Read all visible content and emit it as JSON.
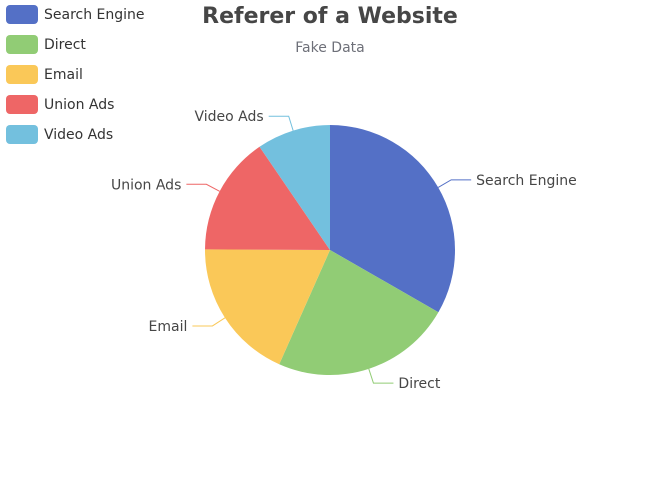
{
  "chart_data": {
    "type": "pie",
    "title": "Referer of a Website",
    "subtitle": "Fake Data",
    "legend_position": "top-left",
    "slices": [
      {
        "name": "Search Engine",
        "value": 1048,
        "color": "#5470c6"
      },
      {
        "name": "Direct",
        "value": 735,
        "color": "#91cc75"
      },
      {
        "name": "Email",
        "value": 580,
        "color": "#fac858"
      },
      {
        "name": "Union Ads",
        "value": 484,
        "color": "#ee6666"
      },
      {
        "name": "Video Ads",
        "value": 300,
        "color": "#73c0de"
      }
    ]
  }
}
